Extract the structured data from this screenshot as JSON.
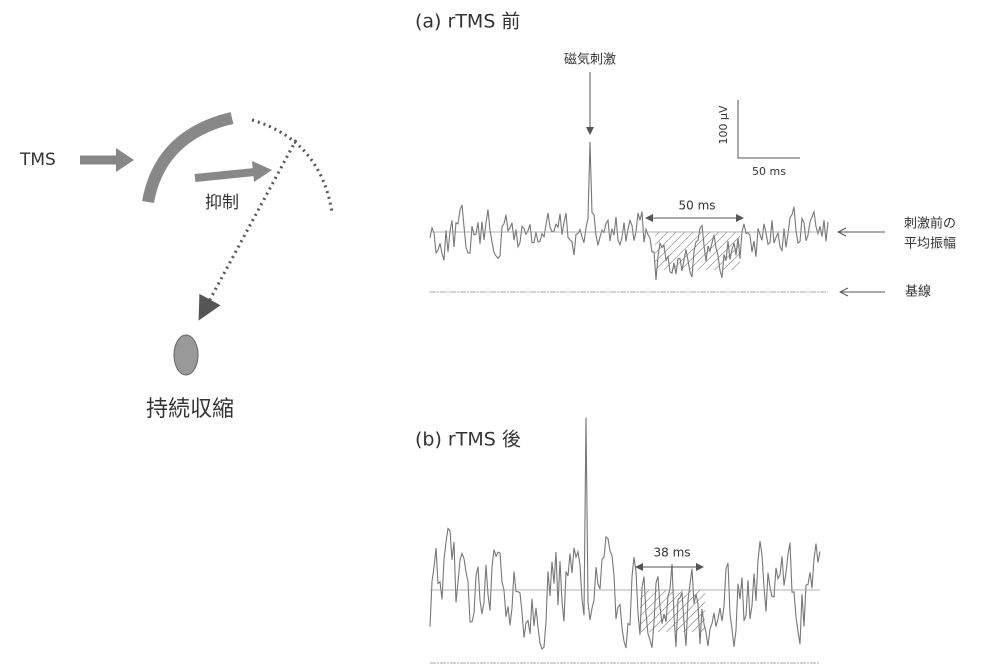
{
  "left_diagram": {
    "stimulus": "TMS",
    "inhibition": "抑制",
    "target": "持続収縮"
  },
  "panel_a": {
    "title": "(a) rTMS 前",
    "stimulus_label": "磁気刺激",
    "scale_y": "100 μV",
    "scale_x": "50 ms",
    "duration": "50 ms",
    "mean_label_1": "刺激前の",
    "mean_label_2": "平均振幅",
    "baseline_label": "基線"
  },
  "panel_b": {
    "title": "(b) rTMS 後",
    "duration": "38 ms"
  }
}
